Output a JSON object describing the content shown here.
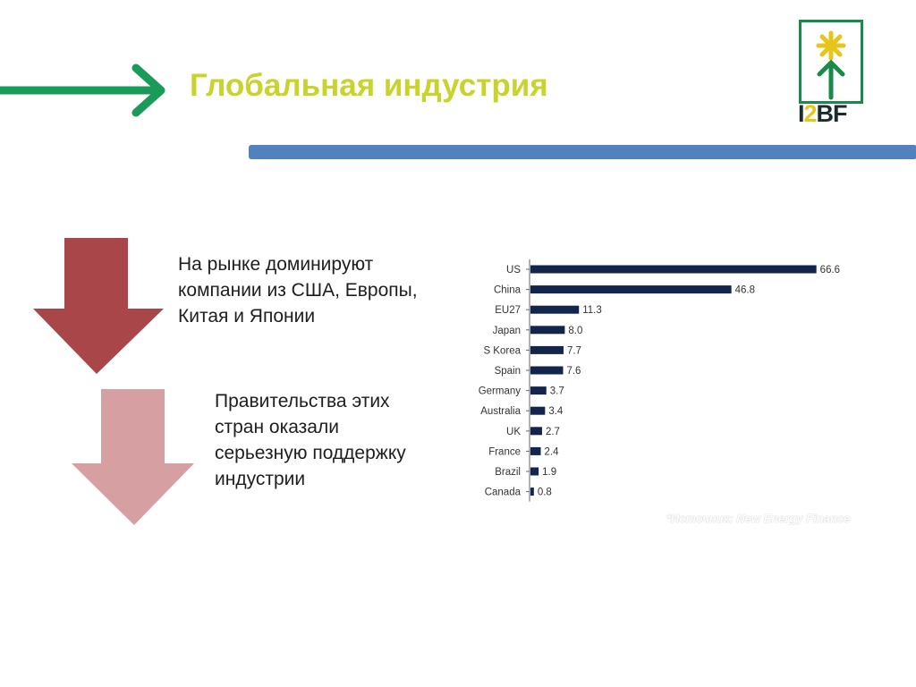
{
  "header": {
    "title": "Глобальная индустрия"
  },
  "logo": {
    "text_part1": "I",
    "text_part2": "2",
    "text_part3": "BF"
  },
  "statements": [
    "На рынке доминируют компании из США, Европы, Китая и Японии",
    "Правительства этих стран оказали серьезную поддержку индустрии"
  ],
  "chart_data": {
    "type": "bar",
    "orientation": "horizontal",
    "categories": [
      "US",
      "China",
      "EU27",
      "Japan",
      "S Korea",
      "Spain",
      "Germany",
      "Australia",
      "UK",
      "France",
      "Brazil",
      "Canada"
    ],
    "values": [
      66.6,
      46.8,
      11.3,
      8.0,
      7.7,
      7.6,
      3.7,
      3.4,
      2.7,
      2.4,
      1.9,
      0.8
    ],
    "value_labels": [
      "66.6",
      "46.8",
      "11.3",
      "8.0",
      "7.7",
      "7.6",
      "3.7",
      "3.4",
      "2.7",
      "2.4",
      "1.9",
      "0.8"
    ],
    "xlim": [
      0,
      70
    ],
    "bar_color": "#14254d",
    "grid": false,
    "legend": "none"
  },
  "source_note": "*Источник: New Energy Finance",
  "colors": {
    "title": "#c8d32c",
    "green_arrow": "#1a9b5a",
    "blue_bar": "#5282be",
    "dark_red_arrow": "#a9464a",
    "light_red_arrow": "#d6a0a2",
    "logo_green": "#1a8a4a",
    "logo_yellow": "#e7c51a"
  }
}
